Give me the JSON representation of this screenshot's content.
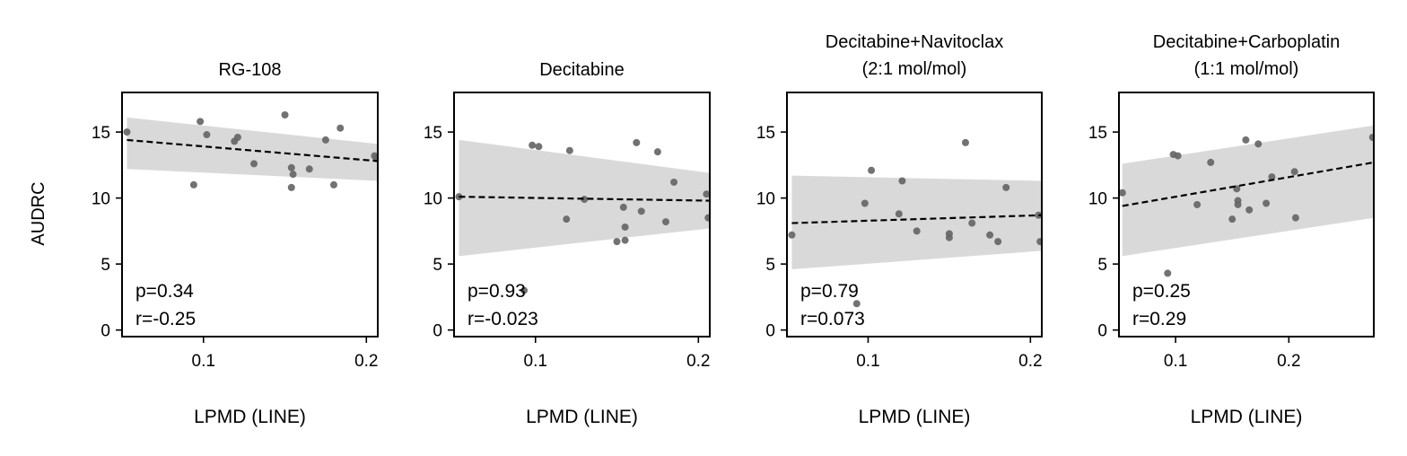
{
  "figure": {
    "ylabel": "AUDRC"
  },
  "chart_data": [
    {
      "type": "scatter",
      "title": [
        "RG-108"
      ],
      "xlabel": "LPMD (LINE)",
      "ylabel": "AUDRC",
      "xlim": [
        0.05,
        0.207
      ],
      "ylim": [
        -0.5,
        18
      ],
      "xticks": [
        0.1,
        0.2
      ],
      "xtick_labels": [
        "0.1",
        "0.2"
      ],
      "yticks": [
        0,
        5,
        10,
        15
      ],
      "ytick_labels": [
        "0",
        "5",
        "10",
        "15"
      ],
      "stats": {
        "p": "p=0.34",
        "r": "r=-0.25"
      },
      "regression": {
        "x": [
          0.053,
          0.207
        ],
        "y": [
          14.4,
          12.8
        ]
      },
      "ci_band": {
        "x": [
          0.053,
          0.207
        ],
        "upper": [
          16.1,
          14.1
        ],
        "lower": [
          12.2,
          11.3
        ]
      },
      "points": [
        {
          "x": 0.053,
          "y": 15.0
        },
        {
          "x": 0.094,
          "y": 11.0
        },
        {
          "x": 0.098,
          "y": 15.8
        },
        {
          "x": 0.102,
          "y": 14.8
        },
        {
          "x": 0.119,
          "y": 14.3
        },
        {
          "x": 0.121,
          "y": 14.6
        },
        {
          "x": 0.131,
          "y": 12.6
        },
        {
          "x": 0.15,
          "y": 16.3
        },
        {
          "x": 0.154,
          "y": 12.3
        },
        {
          "x": 0.155,
          "y": 11.8
        },
        {
          "x": 0.154,
          "y": 10.8
        },
        {
          "x": 0.165,
          "y": 12.2
        },
        {
          "x": 0.175,
          "y": 14.4
        },
        {
          "x": 0.18,
          "y": 11.0
        },
        {
          "x": 0.184,
          "y": 15.3
        },
        {
          "x": 0.205,
          "y": 13.2
        },
        {
          "x": 0.206,
          "y": 13.0
        }
      ]
    },
    {
      "type": "scatter",
      "title": [
        "Decitabine"
      ],
      "xlabel": "LPMD (LINE)",
      "ylabel": "",
      "xlim": [
        0.05,
        0.207
      ],
      "ylim": [
        -0.5,
        18
      ],
      "xticks": [
        0.1,
        0.2
      ],
      "xtick_labels": [
        "0.1",
        "0.2"
      ],
      "yticks": [
        0,
        5,
        10,
        15
      ],
      "ytick_labels": [
        "0",
        "5",
        "10",
        "15"
      ],
      "stats": {
        "p": "p=0.93",
        "r": "r=-0.023"
      },
      "regression": {
        "x": [
          0.053,
          0.207
        ],
        "y": [
          10.1,
          9.8
        ]
      },
      "ci_band": {
        "x": [
          0.053,
          0.207
        ],
        "upper": [
          14.4,
          11.9
        ],
        "lower": [
          5.6,
          7.7
        ]
      },
      "points": [
        {
          "x": 0.053,
          "y": 10.1
        },
        {
          "x": 0.093,
          "y": 3.0
        },
        {
          "x": 0.098,
          "y": 14.0
        },
        {
          "x": 0.102,
          "y": 13.9
        },
        {
          "x": 0.119,
          "y": 8.4
        },
        {
          "x": 0.121,
          "y": 13.6
        },
        {
          "x": 0.13,
          "y": 9.9
        },
        {
          "x": 0.15,
          "y": 6.7
        },
        {
          "x": 0.154,
          "y": 9.3
        },
        {
          "x": 0.155,
          "y": 7.8
        },
        {
          "x": 0.155,
          "y": 6.8
        },
        {
          "x": 0.162,
          "y": 14.2
        },
        {
          "x": 0.165,
          "y": 9.0
        },
        {
          "x": 0.175,
          "y": 13.5
        },
        {
          "x": 0.18,
          "y": 8.2
        },
        {
          "x": 0.185,
          "y": 11.2
        },
        {
          "x": 0.205,
          "y": 10.3
        },
        {
          "x": 0.206,
          "y": 8.5
        }
      ]
    },
    {
      "type": "scatter",
      "title": [
        "Decitabine+Navitoclax",
        "(2:1 mol/mol)"
      ],
      "xlabel": "LPMD (LINE)",
      "ylabel": "",
      "xlim": [
        0.05,
        0.207
      ],
      "ylim": [
        -0.5,
        18
      ],
      "xticks": [
        0.1,
        0.2
      ],
      "xtick_labels": [
        "0.1",
        "0.2"
      ],
      "yticks": [
        0,
        5,
        10,
        15
      ],
      "ytick_labels": [
        "0",
        "5",
        "10",
        "15"
      ],
      "stats": {
        "p": "p=0.79",
        "r": "r=0.073"
      },
      "regression": {
        "x": [
          0.053,
          0.207
        ],
        "y": [
          8.1,
          8.7
        ]
      },
      "ci_band": {
        "x": [
          0.053,
          0.207
        ],
        "upper": [
          11.7,
          11.3
        ],
        "lower": [
          4.6,
          6.0
        ]
      },
      "points": [
        {
          "x": 0.053,
          "y": 7.2
        },
        {
          "x": 0.093,
          "y": 2.0
        },
        {
          "x": 0.098,
          "y": 9.6
        },
        {
          "x": 0.102,
          "y": 12.1
        },
        {
          "x": 0.119,
          "y": 8.8
        },
        {
          "x": 0.121,
          "y": 11.3
        },
        {
          "x": 0.13,
          "y": 7.5
        },
        {
          "x": 0.15,
          "y": 7.3
        },
        {
          "x": 0.15,
          "y": 7.0
        },
        {
          "x": 0.16,
          "y": 14.2
        },
        {
          "x": 0.164,
          "y": 8.1
        },
        {
          "x": 0.175,
          "y": 7.2
        },
        {
          "x": 0.18,
          "y": 6.7
        },
        {
          "x": 0.185,
          "y": 10.8
        },
        {
          "x": 0.205,
          "y": 8.7
        },
        {
          "x": 0.206,
          "y": 6.7
        }
      ]
    },
    {
      "type": "scatter",
      "title": [
        "Decitabine+Carboplatin",
        "(1:1 mol/mol)"
      ],
      "xlabel": "LPMD (LINE)",
      "ylabel": "",
      "xlim": [
        0.05,
        0.275
      ],
      "ylim": [
        -0.5,
        18
      ],
      "xticks": [
        0.1,
        0.2
      ],
      "xtick_labels": [
        "0.1",
        "0.2"
      ],
      "yticks": [
        0,
        5,
        10,
        15
      ],
      "ytick_labels": [
        "0",
        "5",
        "10",
        "15"
      ],
      "stats": {
        "p": "p=0.25",
        "r": "r=0.29"
      },
      "regression": {
        "x": [
          0.053,
          0.275
        ],
        "y": [
          9.4,
          12.7
        ]
      },
      "ci_band": {
        "x": [
          0.053,
          0.275
        ],
        "upper": [
          12.6,
          15.5
        ],
        "lower": [
          5.6,
          8.5
        ]
      },
      "points": [
        {
          "x": 0.053,
          "y": 10.4
        },
        {
          "x": 0.093,
          "y": 4.3
        },
        {
          "x": 0.098,
          "y": 13.3
        },
        {
          "x": 0.102,
          "y": 13.2
        },
        {
          "x": 0.119,
          "y": 9.5
        },
        {
          "x": 0.131,
          "y": 12.7
        },
        {
          "x": 0.15,
          "y": 8.4
        },
        {
          "x": 0.154,
          "y": 10.7
        },
        {
          "x": 0.155,
          "y": 9.8
        },
        {
          "x": 0.155,
          "y": 9.5
        },
        {
          "x": 0.162,
          "y": 14.4
        },
        {
          "x": 0.165,
          "y": 9.1
        },
        {
          "x": 0.173,
          "y": 14.1
        },
        {
          "x": 0.18,
          "y": 9.6
        },
        {
          "x": 0.185,
          "y": 11.6
        },
        {
          "x": 0.205,
          "y": 12.0
        },
        {
          "x": 0.206,
          "y": 8.5
        },
        {
          "x": 0.274,
          "y": 14.6
        }
      ]
    }
  ]
}
